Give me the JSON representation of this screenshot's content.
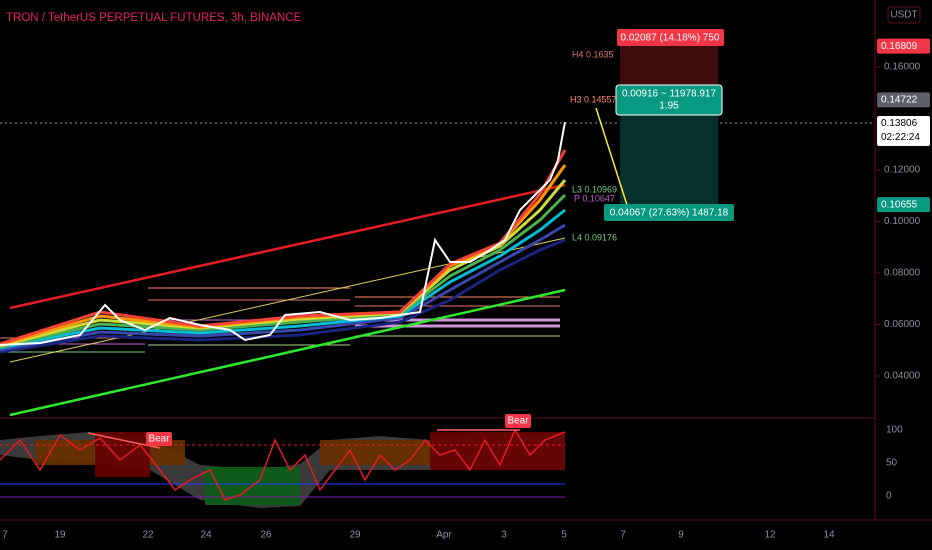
{
  "header": {
    "title": "TRON / TetherUS PERPETUAL FUTURES, 3h, BINANCE",
    "currency": "USDT"
  },
  "price_axis": {
    "ticks": [
      {
        "value": 0.16,
        "label": "0.16000"
      },
      {
        "value": 0.12,
        "label": "0.12000"
      },
      {
        "value": 0.1,
        "label": "0.10000"
      },
      {
        "value": 0.08,
        "label": "0.08000"
      },
      {
        "value": 0.06,
        "label": "0.06000"
      },
      {
        "value": 0.04,
        "label": "0.04000"
      }
    ],
    "markers": {
      "target": {
        "value": 0.16809,
        "label": "0.16809"
      },
      "entry": {
        "value": 0.14722,
        "label": "0.14722"
      },
      "last": {
        "value": 0.13806,
        "label": "0.13806",
        "countdown": "02:22:24"
      },
      "stop": {
        "value": 0.10655,
        "label": "0.10655"
      }
    }
  },
  "oscillator_axis": [
    "100",
    "50",
    "0"
  ],
  "time_axis": [
    "7",
    "19",
    "22",
    "24",
    "26",
    "29",
    "Apr",
    "3",
    "5",
    "7",
    "9",
    "12",
    "14"
  ],
  "position": {
    "profit_label": "0.02087 (14.18%) 750",
    "center_label": "0.00916 ~ 11978.917",
    "ratio": "1.95",
    "loss_label": "0.04067 (27.63%) 1487.18"
  },
  "pivots": [
    "H4 0.1635",
    "H3 0.14557",
    "L3 0.10969",
    "P 0.10647",
    "L4 0.09176"
  ],
  "signals": [
    "Bear",
    "Bear"
  ]
}
